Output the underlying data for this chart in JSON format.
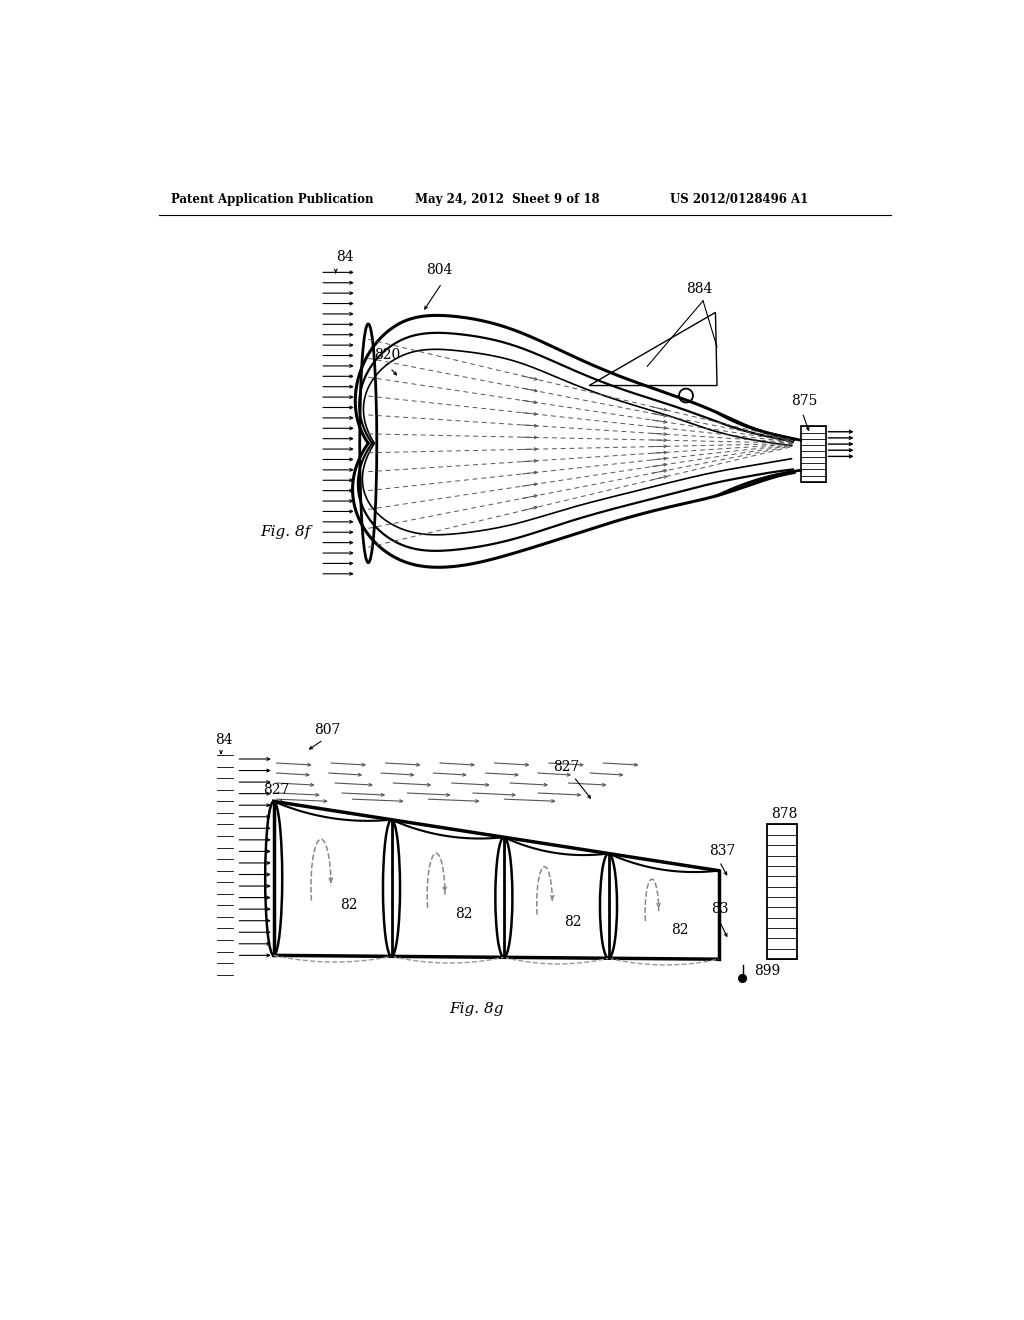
{
  "background_color": "#ffffff",
  "header_left": "Patent Application Publication",
  "header_middle": "May 24, 2012  Sheet 9 of 18",
  "header_right": "US 2012/0128496 A1",
  "fig8f_label": "Fig. 8f",
  "fig8g_label": "Fig. 8g",
  "text_color": "#000000",
  "line_color": "#000000",
  "gray_color": "#666666",
  "light_gray": "#999999"
}
